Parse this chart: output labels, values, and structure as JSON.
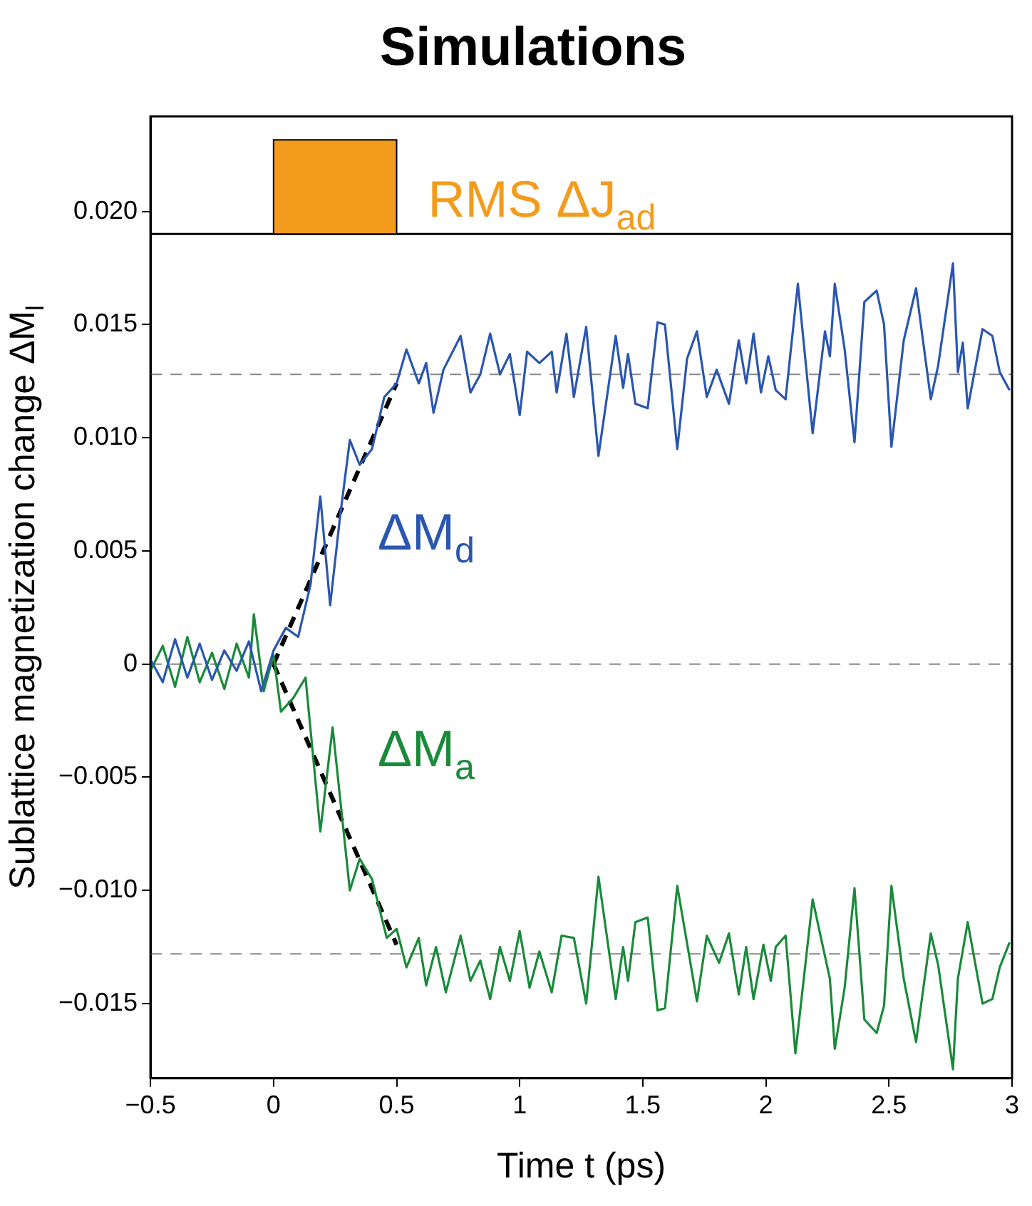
{
  "chart_data": {
    "type": "line",
    "title": "Simulations",
    "xlabel": "Time t (ps)",
    "ylabel": "Sublattice magnetization change ΔM$_{l}$",
    "xlim": [
      -0.5,
      3.0
    ],
    "ylim": [
      -0.0183,
      0.0242
    ],
    "xticks": [
      {
        "value": -0.5,
        "label": "−0.5"
      },
      0,
      0.5,
      1,
      1.5,
      2,
      2.5,
      3
    ],
    "yticks": [
      {
        "value": -0.015,
        "label": "−0.015"
      },
      {
        "value": -0.01,
        "label": "−0.010"
      },
      {
        "value": -0.005,
        "label": "−0.005"
      },
      0,
      0.005,
      {
        "value": 0.01,
        "label": "0.010"
      },
      0.015,
      {
        "value": 0.02,
        "label": "0.020"
      }
    ],
    "grid": false,
    "legend": false,
    "marker": "none",
    "series": [
      {
        "name": "ΔM$_{d}$",
        "color": "#2a56b0",
        "x": [
          -0.5,
          -0.45,
          -0.4,
          -0.35,
          -0.3,
          -0.25,
          -0.2,
          -0.15,
          -0.1,
          -0.05,
          0,
          0.05,
          0.1,
          0.15,
          0.19,
          0.23,
          0.27,
          0.31,
          0.35,
          0.4,
          0.45,
          0.5,
          0.54,
          0.59,
          0.62,
          0.65,
          0.69,
          0.76,
          0.8,
          0.84,
          0.88,
          0.92,
          0.96,
          1.0,
          1.03,
          1.08,
          1.13,
          1.15,
          1.19,
          1.22,
          1.27,
          1.32,
          1.39,
          1.42,
          1.44,
          1.47,
          1.52,
          1.56,
          1.59,
          1.64,
          1.68,
          1.72,
          1.76,
          1.8,
          1.85,
          1.89,
          1.92,
          1.95,
          1.98,
          2.01,
          2.04,
          2.08,
          2.13,
          2.19,
          2.24,
          2.26,
          2.28,
          2.32,
          2.36,
          2.4,
          2.45,
          2.48,
          2.51,
          2.56,
          2.61,
          2.67,
          2.7,
          2.76,
          2.78,
          2.8,
          2.82,
          2.88,
          2.92,
          2.95,
          2.99
        ],
        "values": [
          0.0002,
          -0.0008,
          0.0011,
          -0.0006,
          0.0009,
          -0.0007,
          0.0006,
          -0.0003,
          0.001,
          -0.0012,
          0.0006,
          0.0016,
          0.0012,
          0.0035,
          0.0074,
          0.0026,
          0.0065,
          0.0099,
          0.0088,
          0.0095,
          0.0118,
          0.0124,
          0.0139,
          0.0124,
          0.0133,
          0.0111,
          0.013,
          0.0145,
          0.012,
          0.0128,
          0.0146,
          0.0128,
          0.0137,
          0.011,
          0.0138,
          0.0133,
          0.0138,
          0.012,
          0.0146,
          0.0118,
          0.0149,
          0.0092,
          0.0145,
          0.0122,
          0.0137,
          0.0115,
          0.0113,
          0.0151,
          0.015,
          0.0095,
          0.0135,
          0.0147,
          0.0118,
          0.013,
          0.0115,
          0.0143,
          0.0124,
          0.0146,
          0.012,
          0.0136,
          0.0121,
          0.0117,
          0.0168,
          0.0102,
          0.0147,
          0.0136,
          0.0168,
          0.0139,
          0.0098,
          0.016,
          0.0165,
          0.015,
          0.0096,
          0.0143,
          0.0166,
          0.0117,
          0.0132,
          0.0177,
          0.0129,
          0.0142,
          0.0113,
          0.0148,
          0.0145,
          0.0129,
          0.0121
        ]
      },
      {
        "name": "ΔM$_{a}$",
        "color": "#1a8a3a",
        "x": [
          -0.5,
          -0.45,
          -0.4,
          -0.35,
          -0.3,
          -0.25,
          -0.2,
          -0.15,
          -0.1,
          -0.08,
          -0.04,
          0,
          0.03,
          0.08,
          0.13,
          0.19,
          0.24,
          0.31,
          0.35,
          0.4,
          0.46,
          0.5,
          0.54,
          0.59,
          0.62,
          0.66,
          0.7,
          0.76,
          0.8,
          0.84,
          0.88,
          0.92,
          0.96,
          1.0,
          1.04,
          1.08,
          1.13,
          1.17,
          1.22,
          1.27,
          1.32,
          1.39,
          1.42,
          1.44,
          1.47,
          1.52,
          1.56,
          1.59,
          1.64,
          1.72,
          1.76,
          1.81,
          1.85,
          1.89,
          1.92,
          1.95,
          1.99,
          2.02,
          2.04,
          2.08,
          2.12,
          2.19,
          2.26,
          2.28,
          2.32,
          2.36,
          2.4,
          2.45,
          2.48,
          2.51,
          2.56,
          2.61,
          2.67,
          2.7,
          2.76,
          2.78,
          2.82,
          2.88,
          2.92,
          2.95,
          2.99
        ],
        "values": [
          -0.0003,
          0.0008,
          -0.001,
          0.0012,
          -0.0008,
          0.0005,
          -0.0011,
          0.0009,
          -0.0006,
          0.0022,
          -0.0012,
          0.0004,
          -0.0021,
          -0.0015,
          -0.0006,
          -0.0074,
          -0.0028,
          -0.01,
          -0.0086,
          -0.0095,
          -0.0121,
          -0.0117,
          -0.0134,
          -0.0121,
          -0.0142,
          -0.0125,
          -0.0145,
          -0.012,
          -0.014,
          -0.0131,
          -0.0148,
          -0.0125,
          -0.014,
          -0.0118,
          -0.0143,
          -0.0127,
          -0.0145,
          -0.012,
          -0.0121,
          -0.015,
          -0.0094,
          -0.0148,
          -0.0125,
          -0.014,
          -0.0114,
          -0.0112,
          -0.0153,
          -0.0152,
          -0.0098,
          -0.0149,
          -0.012,
          -0.0132,
          -0.0119,
          -0.0146,
          -0.0125,
          -0.0148,
          -0.0124,
          -0.014,
          -0.0125,
          -0.012,
          -0.0172,
          -0.0104,
          -0.0139,
          -0.017,
          -0.0143,
          -0.0099,
          -0.0157,
          -0.0163,
          -0.0151,
          -0.0098,
          -0.0139,
          -0.0167,
          -0.0119,
          -0.0133,
          -0.0179,
          -0.0139,
          -0.0114,
          -0.015,
          -0.0148,
          -0.0134,
          -0.0123
        ]
      },
      {
        "color": "#000000",
        "line_style": "dashed",
        "x": [
          0,
          0.25,
          0.5
        ],
        "values": [
          0,
          0.0062,
          0.0124
        ]
      },
      {
        "color": "#000000",
        "line_style": "dashed",
        "x": [
          0,
          0.25,
          0.5
        ],
        "values": [
          0,
          -0.0062,
          -0.0124
        ]
      }
    ],
    "ref_lines": [
      {
        "axis": "y",
        "value": 0.0128,
        "line_style": "dashed",
        "color": "#888888"
      },
      {
        "axis": "y",
        "value": 0,
        "line_style": "dashed",
        "color": "#888888"
      },
      {
        "axis": "y",
        "value": -0.0128,
        "line_style": "dashed",
        "color": "#888888"
      },
      {
        "axis": "y",
        "value": 0.019,
        "line_style": "solid",
        "color": "#000000"
      }
    ],
    "bands": [
      {
        "axis": "x",
        "from": 0,
        "to": 0.5,
        "label": "RMS ΔJ$_{ad}$",
        "color": "#f29b1d"
      }
    ]
  }
}
